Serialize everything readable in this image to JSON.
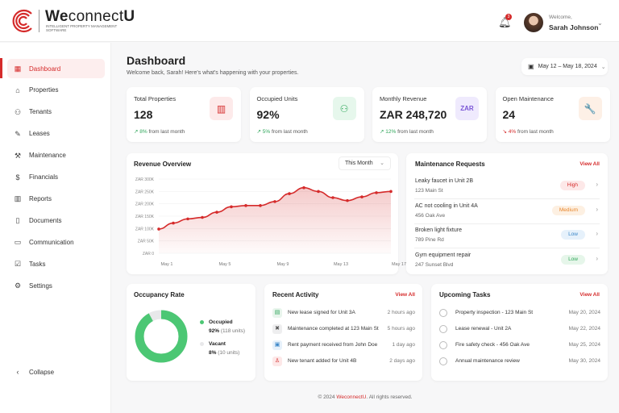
{
  "brand": {
    "name_bold": "We",
    "name_rest": "connect",
    "name_end": "U",
    "tagline": "INTELLIGENT PROPERTY MANAGEMENT SOFTWARE",
    "accent": "#d52b2b"
  },
  "header": {
    "notification_count": "3",
    "welcome": "Welcome,",
    "user_name": "Sarah Johnson"
  },
  "sidebar": {
    "items": [
      {
        "label": "Dashboard",
        "icon": "grid-icon",
        "glyph": "▦",
        "active": true
      },
      {
        "label": "Properties",
        "icon": "home-icon",
        "glyph": "⌂"
      },
      {
        "label": "Tenants",
        "icon": "users-icon",
        "glyph": "⚇"
      },
      {
        "label": "Leases",
        "icon": "lease-icon",
        "glyph": "✎"
      },
      {
        "label": "Maintenance",
        "icon": "wrench-icon",
        "glyph": "⚒"
      },
      {
        "label": "Financials",
        "icon": "money-icon",
        "glyph": "$"
      },
      {
        "label": "Reports",
        "icon": "bar-chart-icon",
        "glyph": "▥"
      },
      {
        "label": "Documents",
        "icon": "document-icon",
        "glyph": "▯"
      },
      {
        "label": "Communication",
        "icon": "chat-icon",
        "glyph": "▭"
      },
      {
        "label": "Tasks",
        "icon": "checkbox-icon",
        "glyph": "☑"
      },
      {
        "label": "Settings",
        "icon": "gear-icon",
        "glyph": "⚙"
      }
    ],
    "collapse": "Collapse"
  },
  "page": {
    "title": "Dashboard",
    "subtitle": "Welcome back, Sarah! Here's what's happening with your properties.",
    "date_range": "May 12 – May 18, 2024"
  },
  "stats": [
    {
      "label": "Total Properties",
      "value": "128",
      "change": "8%",
      "dir": "up",
      "suffix": " from last month",
      "icon": "building-icon",
      "glyph": "▥",
      "bg": "#fdeaea",
      "fg": "#d52b2b"
    },
    {
      "label": "Occupied Units",
      "value": "92%",
      "change": "5%",
      "dir": "up",
      "suffix": " from last month",
      "icon": "users-icon",
      "glyph": "⚇",
      "bg": "#e6f7ec",
      "fg": "#2fa65a"
    },
    {
      "label": "Monthly Revenue",
      "value": "ZAR 248,720",
      "change": "12%",
      "dir": "up",
      "suffix": " from last month",
      "icon": "currency-icon",
      "glyph": "ZAR",
      "bg": "#efeafd",
      "fg": "#7a55d6"
    },
    {
      "label": "Open Maintenance",
      "value": "24",
      "change": "4%",
      "dir": "down",
      "suffix": " from last month",
      "icon": "wrench-icon",
      "glyph": "🔧",
      "bg": "#fdf0e6",
      "fg": "#e8852a"
    }
  ],
  "revenue": {
    "title": "Revenue Overview",
    "period": "This Month"
  },
  "chart_data": {
    "type": "area",
    "x": [
      "May 1",
      "May 2",
      "May 3",
      "May 4",
      "May 5",
      "May 6",
      "May 7",
      "May 8",
      "May 9",
      "May 10",
      "May 11",
      "May 12",
      "May 13",
      "May 14",
      "May 15",
      "May 16",
      "May 17"
    ],
    "values": [
      98,
      122,
      139,
      145,
      166,
      188,
      193,
      193,
      209,
      241,
      265,
      250,
      225,
      213,
      228,
      245,
      250
    ],
    "unit": "ZAR K",
    "ylim": [
      0,
      300
    ],
    "yticks": [
      "ZAR 0",
      "ZAR 50K",
      "ZAR 100K",
      "ZAR 150K",
      "ZAR 200K",
      "ZAR 250K",
      "ZAR 300K"
    ],
    "xticks": [
      "May 1",
      "May 5",
      "May 9",
      "May 13",
      "May 17"
    ],
    "color": "#d52b2b",
    "grid": true
  },
  "maintenance": {
    "title": "Maintenance Requests",
    "view_all": "View All",
    "items": [
      {
        "title": "Leaky faucet in Unit 2B",
        "addr": "123 Main St",
        "priority": "High",
        "bg": "#fde8e8",
        "fg": "#d52b2b"
      },
      {
        "title": "AC not cooling in Unit 4A",
        "addr": "456 Oak Ave",
        "priority": "Medium",
        "bg": "#fdf0e2",
        "fg": "#e8852a"
      },
      {
        "title": "Broken light fixture",
        "addr": "789 Pine Rd",
        "priority": "Low",
        "bg": "#e6f1fb",
        "fg": "#3a86c8"
      },
      {
        "title": "Gym equipment repair",
        "addr": "247 Sunset Blvd",
        "priority": "Low",
        "bg": "#e6f6ea",
        "fg": "#2fa65a"
      }
    ]
  },
  "occupancy": {
    "title": "Occupancy Rate",
    "occupied_pct": 92,
    "occupied_label": "Occupied",
    "occupied_value": "92%",
    "occupied_units": "(118 units)",
    "vacant_label": "Vacant",
    "vacant_value": "8%",
    "vacant_units": "(10 units)",
    "occupied_color": "#4cc774",
    "vacant_color": "#e8e8ea"
  },
  "activity": {
    "title": "Recent Activity",
    "view_all": "View All",
    "items": [
      {
        "text": "New lease signed for Unit 3A",
        "time": "2 hours ago",
        "icon": "document-icon",
        "glyph": "▤",
        "bg": "#e8f5ec",
        "fg": "#2fa65a"
      },
      {
        "text": "Maintenance completed at 123 Main St",
        "time": "5 hours ago",
        "icon": "tools-icon",
        "glyph": "✖",
        "bg": "#eeeeef",
        "fg": "#555"
      },
      {
        "text": "Rent payment received from John Doe",
        "time": "1 day ago",
        "icon": "payment-icon",
        "glyph": "▣",
        "bg": "#e6f1fb",
        "fg": "#3a86c8"
      },
      {
        "text": "New tenant added for Unit 4B",
        "time": "2 days ago",
        "icon": "user-icon",
        "glyph": "♙",
        "bg": "#fde8e8",
        "fg": "#d52b2b"
      }
    ]
  },
  "tasks": {
    "title": "Upcoming Tasks",
    "view_all": "View All",
    "items": [
      {
        "text": "Property inspection - 123 Main St",
        "date": "May 20, 2024"
      },
      {
        "text": "Lease renewal - Unit 2A",
        "date": "May 22, 2024"
      },
      {
        "text": "Fire safety check - 456 Oak Ave",
        "date": "May 25, 2024"
      },
      {
        "text": "Annual maintenance review",
        "date": "May 30, 2024"
      }
    ]
  },
  "footer": {
    "prefix": "© 2024 ",
    "brand": "WeconnectU",
    "suffix": ". All rights reserved."
  }
}
